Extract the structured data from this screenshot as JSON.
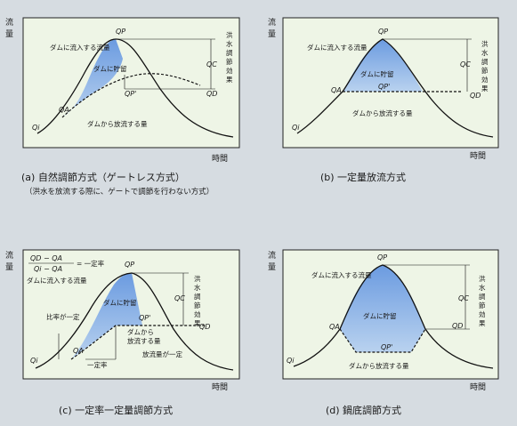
{
  "axes": {
    "y_label": "流量",
    "x_label": "時間"
  },
  "panel_a": {
    "caption": "(a) 自然調節方式（ゲートレス方式）",
    "subcaption": "（洪水を放流する際に、ゲートで調節を行わない方式）",
    "inflow": "ダムに流入する流量",
    "storage": "ダムに貯留",
    "outflow": "ダムから放流する量",
    "effect": "洪水調節効果",
    "qp": "QP",
    "qc": "QC",
    "qd": "QD",
    "qa": "QA",
    "qi": "Qi",
    "qpp": "QP'"
  },
  "panel_b": {
    "caption": "(b) 一定量放流方式",
    "inflow": "ダムに流入する流量",
    "storage": "ダムに貯留",
    "outflow": "ダムから放流する量",
    "effect": "洪水調節効果",
    "qp": "QP",
    "qc": "QC",
    "qd": "QD",
    "qa": "QA",
    "qi": "Qi",
    "qpp": "QP'"
  },
  "panel_c": {
    "caption": "(c) 一定率一定量調節方式",
    "formula_top": "QD − QA",
    "formula_bottom": "Qi − QA",
    "formula_eq": "= 一定率",
    "inflow": "ダムに流入する流量",
    "storage": "ダムに貯留",
    "ratio": "比率が一定",
    "outflow_1": "ダムから",
    "outflow_2": "放流する量",
    "const_rate": "一定率",
    "const_amount": "放流量が一定",
    "effect": "洪水調節効果",
    "qp": "QP",
    "qc": "QC",
    "qd": "QD",
    "qa": "QA",
    "qi": "Qi",
    "qpp": "QP'"
  },
  "panel_d": {
    "caption": "(d) 鍋底調節方式",
    "inflow": "ダムに流入する流量",
    "storage": "ダムに貯留",
    "outflow": "ダムから放流する量",
    "effect": "洪水調節効果",
    "qp": "QP",
    "qc": "QC",
    "qd": "QD",
    "qa": "QA",
    "qi": "Qi",
    "qpp": "QP'"
  },
  "colors": {
    "panel_bg": "#eef5e6",
    "storage_fill": "#93b9e6",
    "page_bg": "#d6dce1"
  }
}
